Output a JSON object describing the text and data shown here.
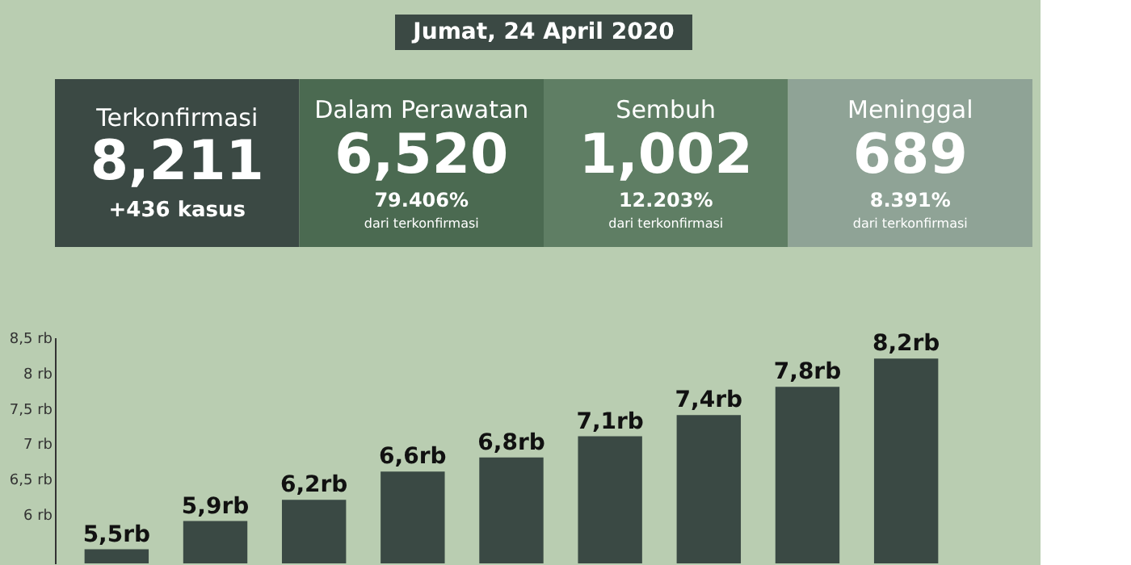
{
  "chart_data": [
    {
      "type": "other",
      "title": "Jumat, 24 April 2020",
      "categories": [
        "Terkonfirmasi",
        "Dalam Perawatan",
        "Sembuh",
        "Meninggal"
      ],
      "value_labels": [
        "8,211",
        "6,520",
        "1,002",
        "689"
      ],
      "colors": [
        "#3b4944",
        "#4b6a51",
        "#5f7e64",
        "#8fa396"
      ],
      "annotations": [
        "+436 kasus",
        "79.406%",
        "dari terkonfirmasi",
        "12.203%",
        "dari terkonfirmasi",
        "8.391%",
        "dari terkonfirmasi"
      ]
    },
    {
      "type": "bar",
      "categories": [
        null,
        null,
        null,
        null,
        null,
        null,
        null,
        null,
        null
      ],
      "values": [
        5.5,
        5.9,
        6.2,
        6.6,
        6.8,
        7.1,
        7.4,
        7.8,
        8.2
      ],
      "value_labels": [
        "5,5rb",
        "5,9rb",
        "6,2rb",
        "6,6rb",
        "6,8rb",
        "7,1rb",
        "7,4rb",
        "7,8rb",
        "8,2rb"
      ],
      "color": "#3a4944",
      "ylim": [
        5.3,
        8.5
      ],
      "yticks": [
        {
          "value": 6,
          "label": "6 rb"
        },
        {
          "value": 6.5,
          "label": "6,5 rb"
        },
        {
          "value": 7,
          "label": "7 rb"
        },
        {
          "value": 7.5,
          "label": "7,5 rb"
        },
        {
          "value": 8,
          "label": "8 rb"
        },
        {
          "value": 8.5,
          "label": "8,5 rb"
        }
      ],
      "grid": false
    }
  ]
}
